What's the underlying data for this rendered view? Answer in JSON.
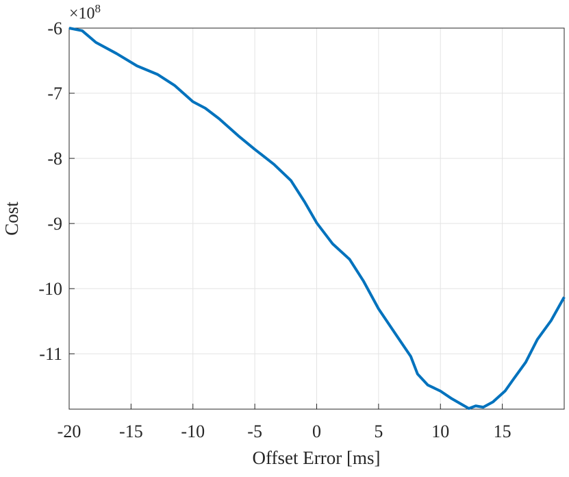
{
  "chart_data": {
    "type": "line",
    "x_label": "Offset Error [ms]",
    "y_label": "Cost",
    "y_multiplier": {
      "base": "×10",
      "exponent": "8"
    },
    "x": [
      -20,
      -18.95,
      -17.84,
      -16.18,
      -14.52,
      -12.87,
      -11.48,
      -10,
      -9,
      -7.89,
      -6.23,
      -5.01,
      -3.46,
      -2.08,
      -0.97,
      0,
      1.28,
      2.66,
      3.77,
      5,
      6.49,
      7.6,
      8.15,
      8.98,
      9.98,
      10.92,
      11.75,
      12.3,
      12.85,
      13.46,
      14.24,
      15.23,
      15.9,
      16.89,
      17.83,
      18.94,
      20
    ],
    "series": [
      {
        "color": "#0072bd",
        "values": [
          -6.0,
          -6.04,
          -6.22,
          -6.39,
          -6.58,
          -6.71,
          -6.88,
          -7.13,
          -7.23,
          -7.39,
          -7.67,
          -7.86,
          -8.09,
          -8.34,
          -8.67,
          -8.99,
          -9.31,
          -9.55,
          -9.88,
          -10.31,
          -10.73,
          -11.04,
          -11.31,
          -11.48,
          -11.57,
          -11.69,
          -11.78,
          -11.84,
          -11.8,
          -11.82,
          -11.74,
          -11.57,
          -11.39,
          -11.13,
          -10.78,
          -10.49,
          -10.13
        ]
      }
    ],
    "xlim": [
      -20,
      20
    ],
    "ylim": [
      -11.85,
      -6
    ],
    "xticks": [
      -20,
      -15,
      -10,
      -5,
      0,
      5,
      10,
      15
    ],
    "yticks": [
      -6,
      -7,
      -8,
      -9,
      -10,
      -11
    ],
    "grid": true
  }
}
